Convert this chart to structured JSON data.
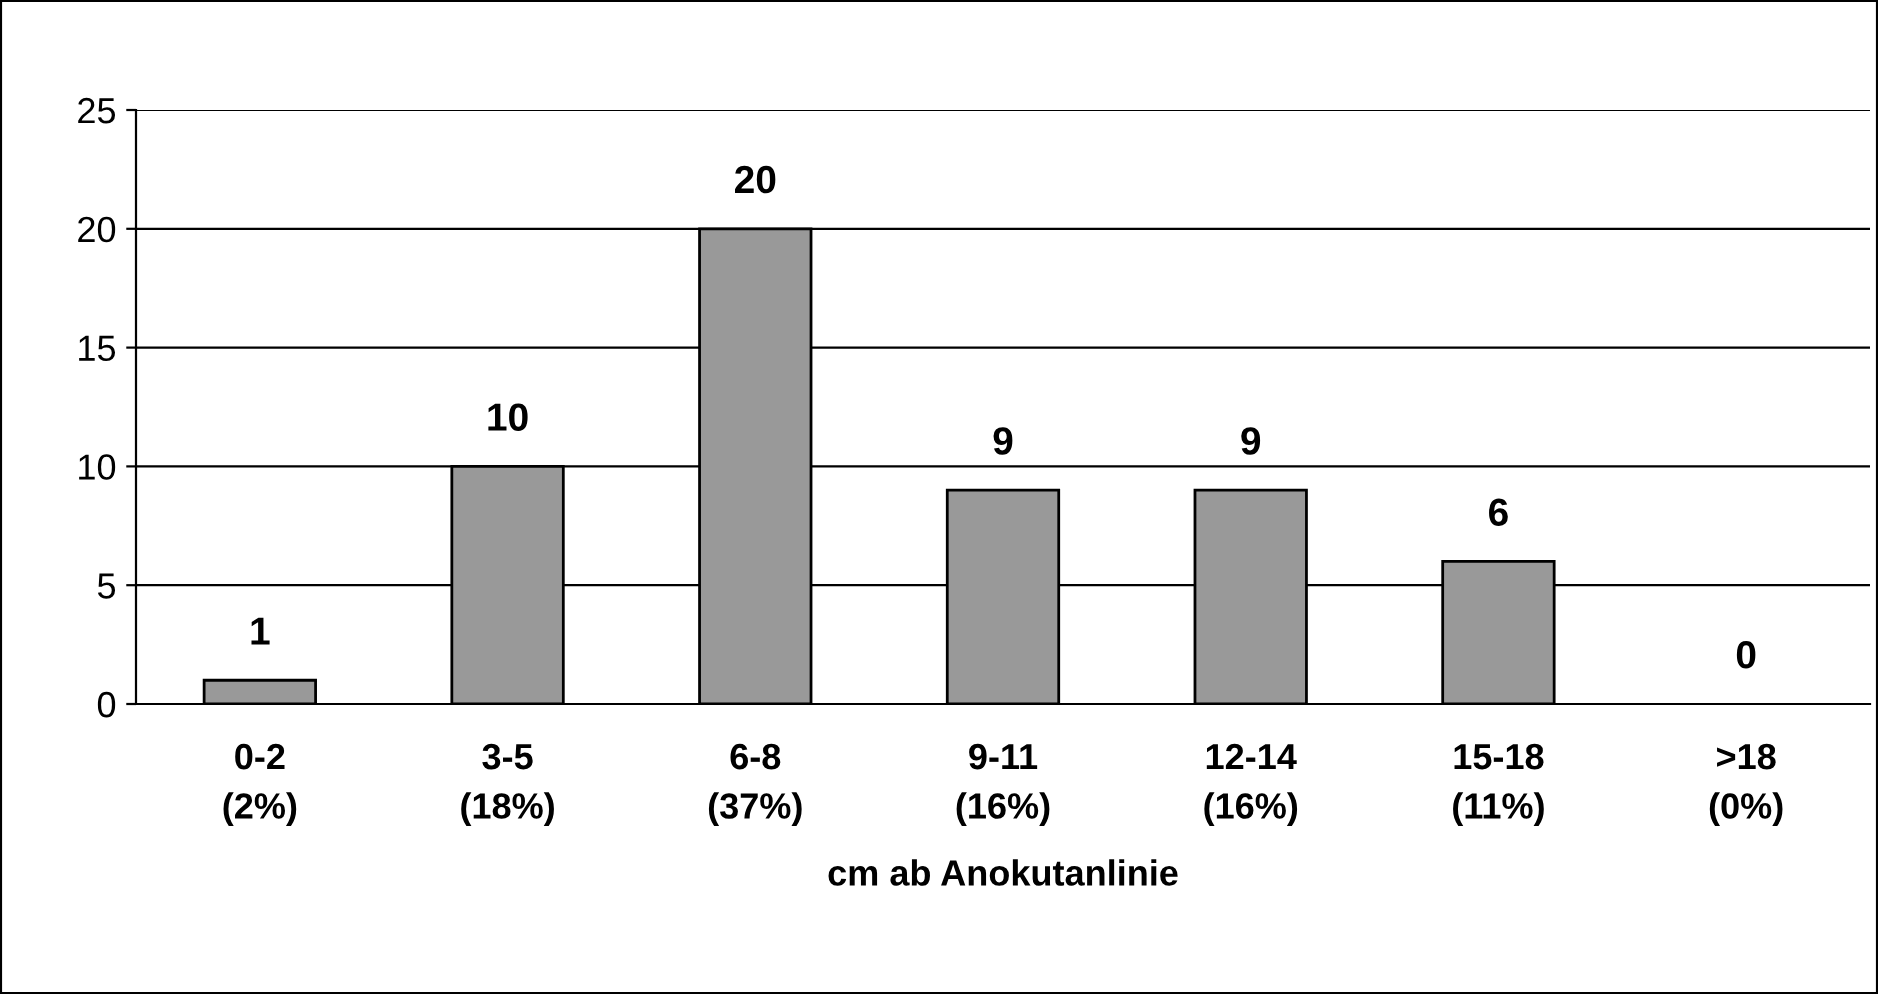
{
  "chart_data": {
    "type": "bar",
    "xlabel": "cm ab Anokutanlinie",
    "categories": [
      "0-2\n(2%)",
      "3-5\n(18%)",
      "6-8\n(37%)",
      "9-11\n(16%)",
      "12-14\n(16%)",
      "15-18\n(11%)",
      ">18\n(0%)"
    ],
    "values": [
      1,
      10,
      20,
      9,
      9,
      6,
      0
    ],
    "color": "#999999",
    "ylim": [
      0,
      25
    ],
    "yticks": [
      0,
      5,
      10,
      15,
      20,
      25
    ],
    "grid": "y",
    "data_labels": true,
    "legend": false
  }
}
